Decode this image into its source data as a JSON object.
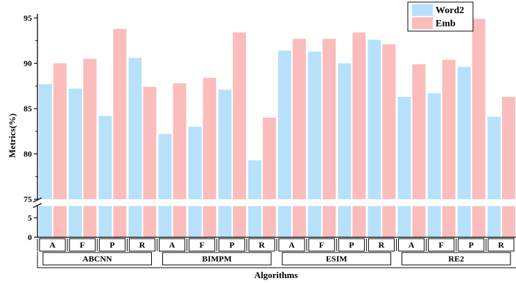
{
  "chart_data": {
    "type": "bar",
    "title": "",
    "xlabel": "Algorithms",
    "ylabel": "Metrics(%)",
    "groups": [
      "ABCNN",
      "BIMPM",
      "ESIM",
      "RE2"
    ],
    "metrics": [
      "A",
      "F",
      "P",
      "R"
    ],
    "y_break": {
      "lower": [
        0,
        8
      ],
      "upper": [
        75,
        95
      ]
    },
    "yticks_upper": [
      75,
      80,
      85,
      90,
      95
    ],
    "yticks_lower": [
      0,
      5
    ],
    "legend_position": "top-right",
    "series": [
      {
        "name": "Word2",
        "color": "#b7e1fb",
        "values": [
          87.7,
          87.2,
          84.2,
          90.6,
          82.2,
          83.0,
          87.1,
          79.3,
          91.4,
          91.3,
          90.0,
          92.6,
          86.3,
          86.7,
          89.6,
          84.1
        ]
      },
      {
        "name": "Emb",
        "color": "#fbbcbc",
        "values": [
          90.0,
          90.5,
          93.8,
          87.4,
          87.8,
          88.4,
          93.4,
          84.0,
          92.7,
          92.7,
          93.4,
          92.1,
          89.9,
          90.4,
          94.9,
          86.3
        ]
      }
    ]
  }
}
